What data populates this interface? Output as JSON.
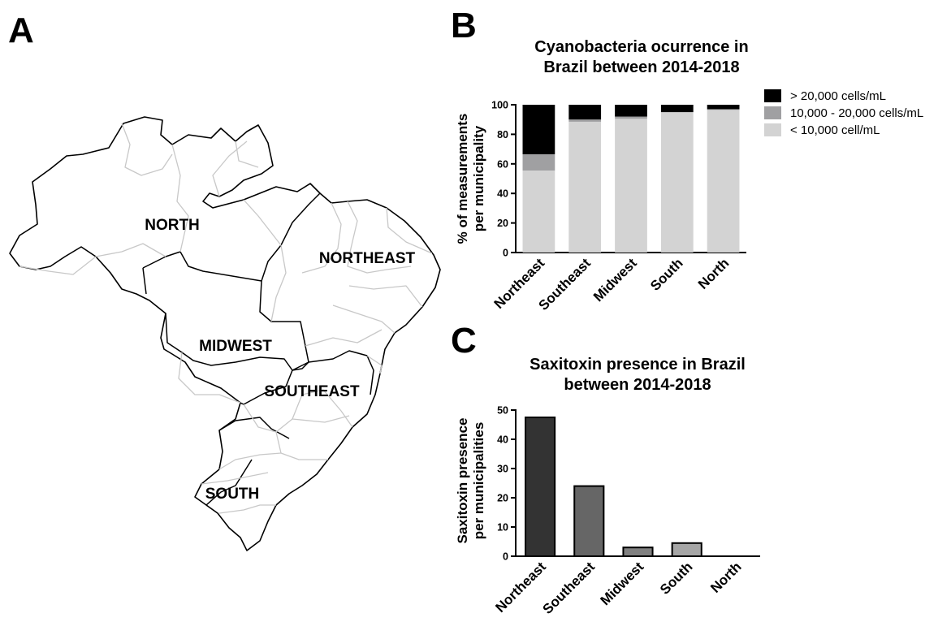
{
  "panels": {
    "a": "A",
    "b": "B",
    "c": "C"
  },
  "map": {
    "regions": [
      "NORTH",
      "NORTHEAST",
      "MIDWEST",
      "SOUTHEAST",
      "SOUTH"
    ],
    "fill": "#ffffff",
    "border_color": "#000000",
    "state_border_color": "#c8c8c8"
  },
  "chart_data": [
    {
      "type": "bar",
      "stacked": true,
      "title": "Cyanobacteria ocurrence in Brazil between 2014-2018",
      "title_lines": [
        "Cyanobacteria ocurrence in",
        "Brazil between 2014-2018"
      ],
      "ylabel": "% of measurements per municipality",
      "ylabel_lines": [
        "% of measurements",
        "per municipality"
      ],
      "xlabel": "",
      "categories": [
        "Northeast",
        "Southeast",
        "Midwest",
        "South",
        "North"
      ],
      "ylim": [
        0,
        100
      ],
      "yticks": [
        0,
        20,
        40,
        60,
        80,
        100
      ],
      "legend_position": "top-right",
      "series": [
        {
          "name": "< 10,000 cell/mL",
          "color": "#d3d3d3",
          "values": [
            55.5,
            88.5,
            90.5,
            95,
            96.5
          ]
        },
        {
          "name": "10,000 - 20,000 cells/mL",
          "color": "#a0a0a2",
          "values": [
            11,
            1.5,
            1.5,
            0,
            0.5
          ]
        },
        {
          "name": "> 20,000 cells/mL",
          "color": "#000000",
          "values": [
            33.5,
            10,
            8,
            5,
            3
          ]
        }
      ],
      "legend_order": [
        "> 20,000 cells/mL",
        "10,000 - 20,000 cells/mL",
        "< 10,000 cell/mL"
      ]
    },
    {
      "type": "bar",
      "title": "Saxitoxin presence in Brazil between 2014-2018",
      "title_lines": [
        "Saxitoxin presence in Brazil",
        "between 2014-2018"
      ],
      "ylabel": "Saxitoxin presence per municipalities",
      "ylabel_lines": [
        "Saxitoxin presence",
        "per municipalities"
      ],
      "xlabel": "",
      "categories": [
        "Northeast",
        "Southeast",
        "Midwest",
        "South",
        "North"
      ],
      "values": [
        47.5,
        24,
        3,
        4.5,
        0
      ],
      "colors": [
        "#333333",
        "#666666",
        "#808080",
        "#a6a6a6",
        "#cccccc"
      ],
      "ylim": [
        0,
        50
      ],
      "yticks": [
        0,
        10,
        20,
        30,
        40,
        50
      ]
    }
  ]
}
